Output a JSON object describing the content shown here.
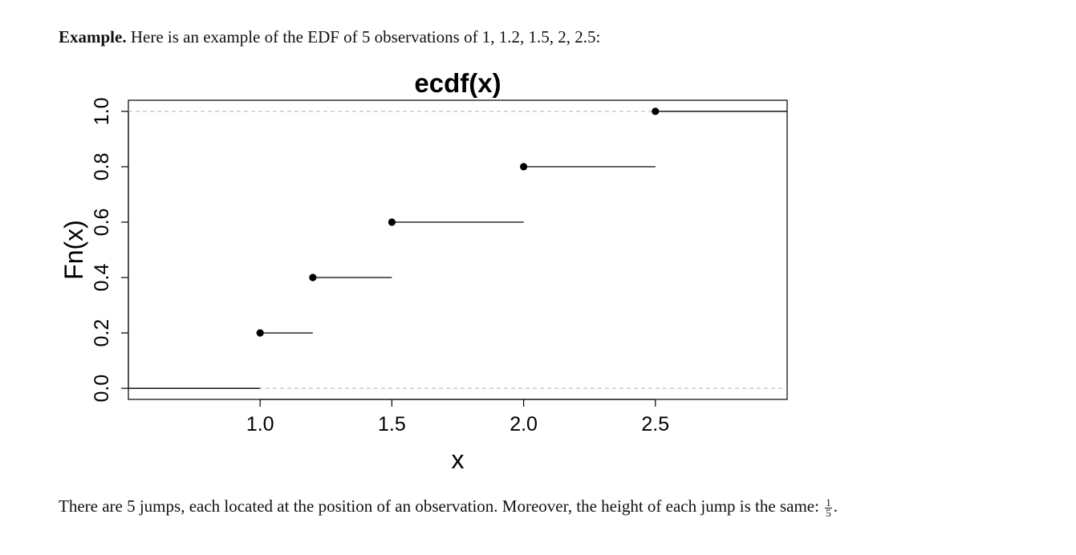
{
  "text": {
    "intro_bold": "Example.",
    "intro_rest": " Here is an example of the EDF of 5 observations of 1, 1.2, 1.5, 2, 2.5:",
    "outro_main": "There are 5 jumps, each located at the position of an observation. Moreover, the height of each jump is the same:",
    "frac_num": "1",
    "frac_den": "5",
    "frac_end": "."
  },
  "chart_data": {
    "type": "line",
    "subtype": "step (ecdf)",
    "title": "ecdf(x)",
    "xlabel": "x",
    "ylabel": "Fn(x)",
    "xlim": [
      0.5,
      3.0
    ],
    "ylim": [
      -0.04,
      1.04
    ],
    "x_ticks": [
      1.0,
      1.5,
      2.0,
      2.5
    ],
    "x_tick_labels": [
      "1.0",
      "1.5",
      "2.0",
      "2.5"
    ],
    "y_ticks": [
      0.0,
      0.2,
      0.4,
      0.6,
      0.8,
      1.0
    ],
    "y_tick_labels": [
      "0.0",
      "0.2",
      "0.4",
      "0.6",
      "0.8",
      "1.0"
    ],
    "observations": [
      1,
      1.2,
      1.5,
      2,
      2.5
    ],
    "steps": [
      {
        "x_start": 0.5,
        "x_end": 1.0,
        "y": 0.0
      },
      {
        "x_start": 1.0,
        "x_end": 1.2,
        "y": 0.2
      },
      {
        "x_start": 1.2,
        "x_end": 1.5,
        "y": 0.4
      },
      {
        "x_start": 1.5,
        "x_end": 2.0,
        "y": 0.6
      },
      {
        "x_start": 2.0,
        "x_end": 2.5,
        "y": 0.8
      },
      {
        "x_start": 2.5,
        "x_end": 3.0,
        "y": 1.0
      }
    ],
    "reference_lines_y": [
      0,
      1
    ],
    "grid": false,
    "colors": {
      "line": "#000000",
      "reference": "#bbbbbb"
    }
  }
}
